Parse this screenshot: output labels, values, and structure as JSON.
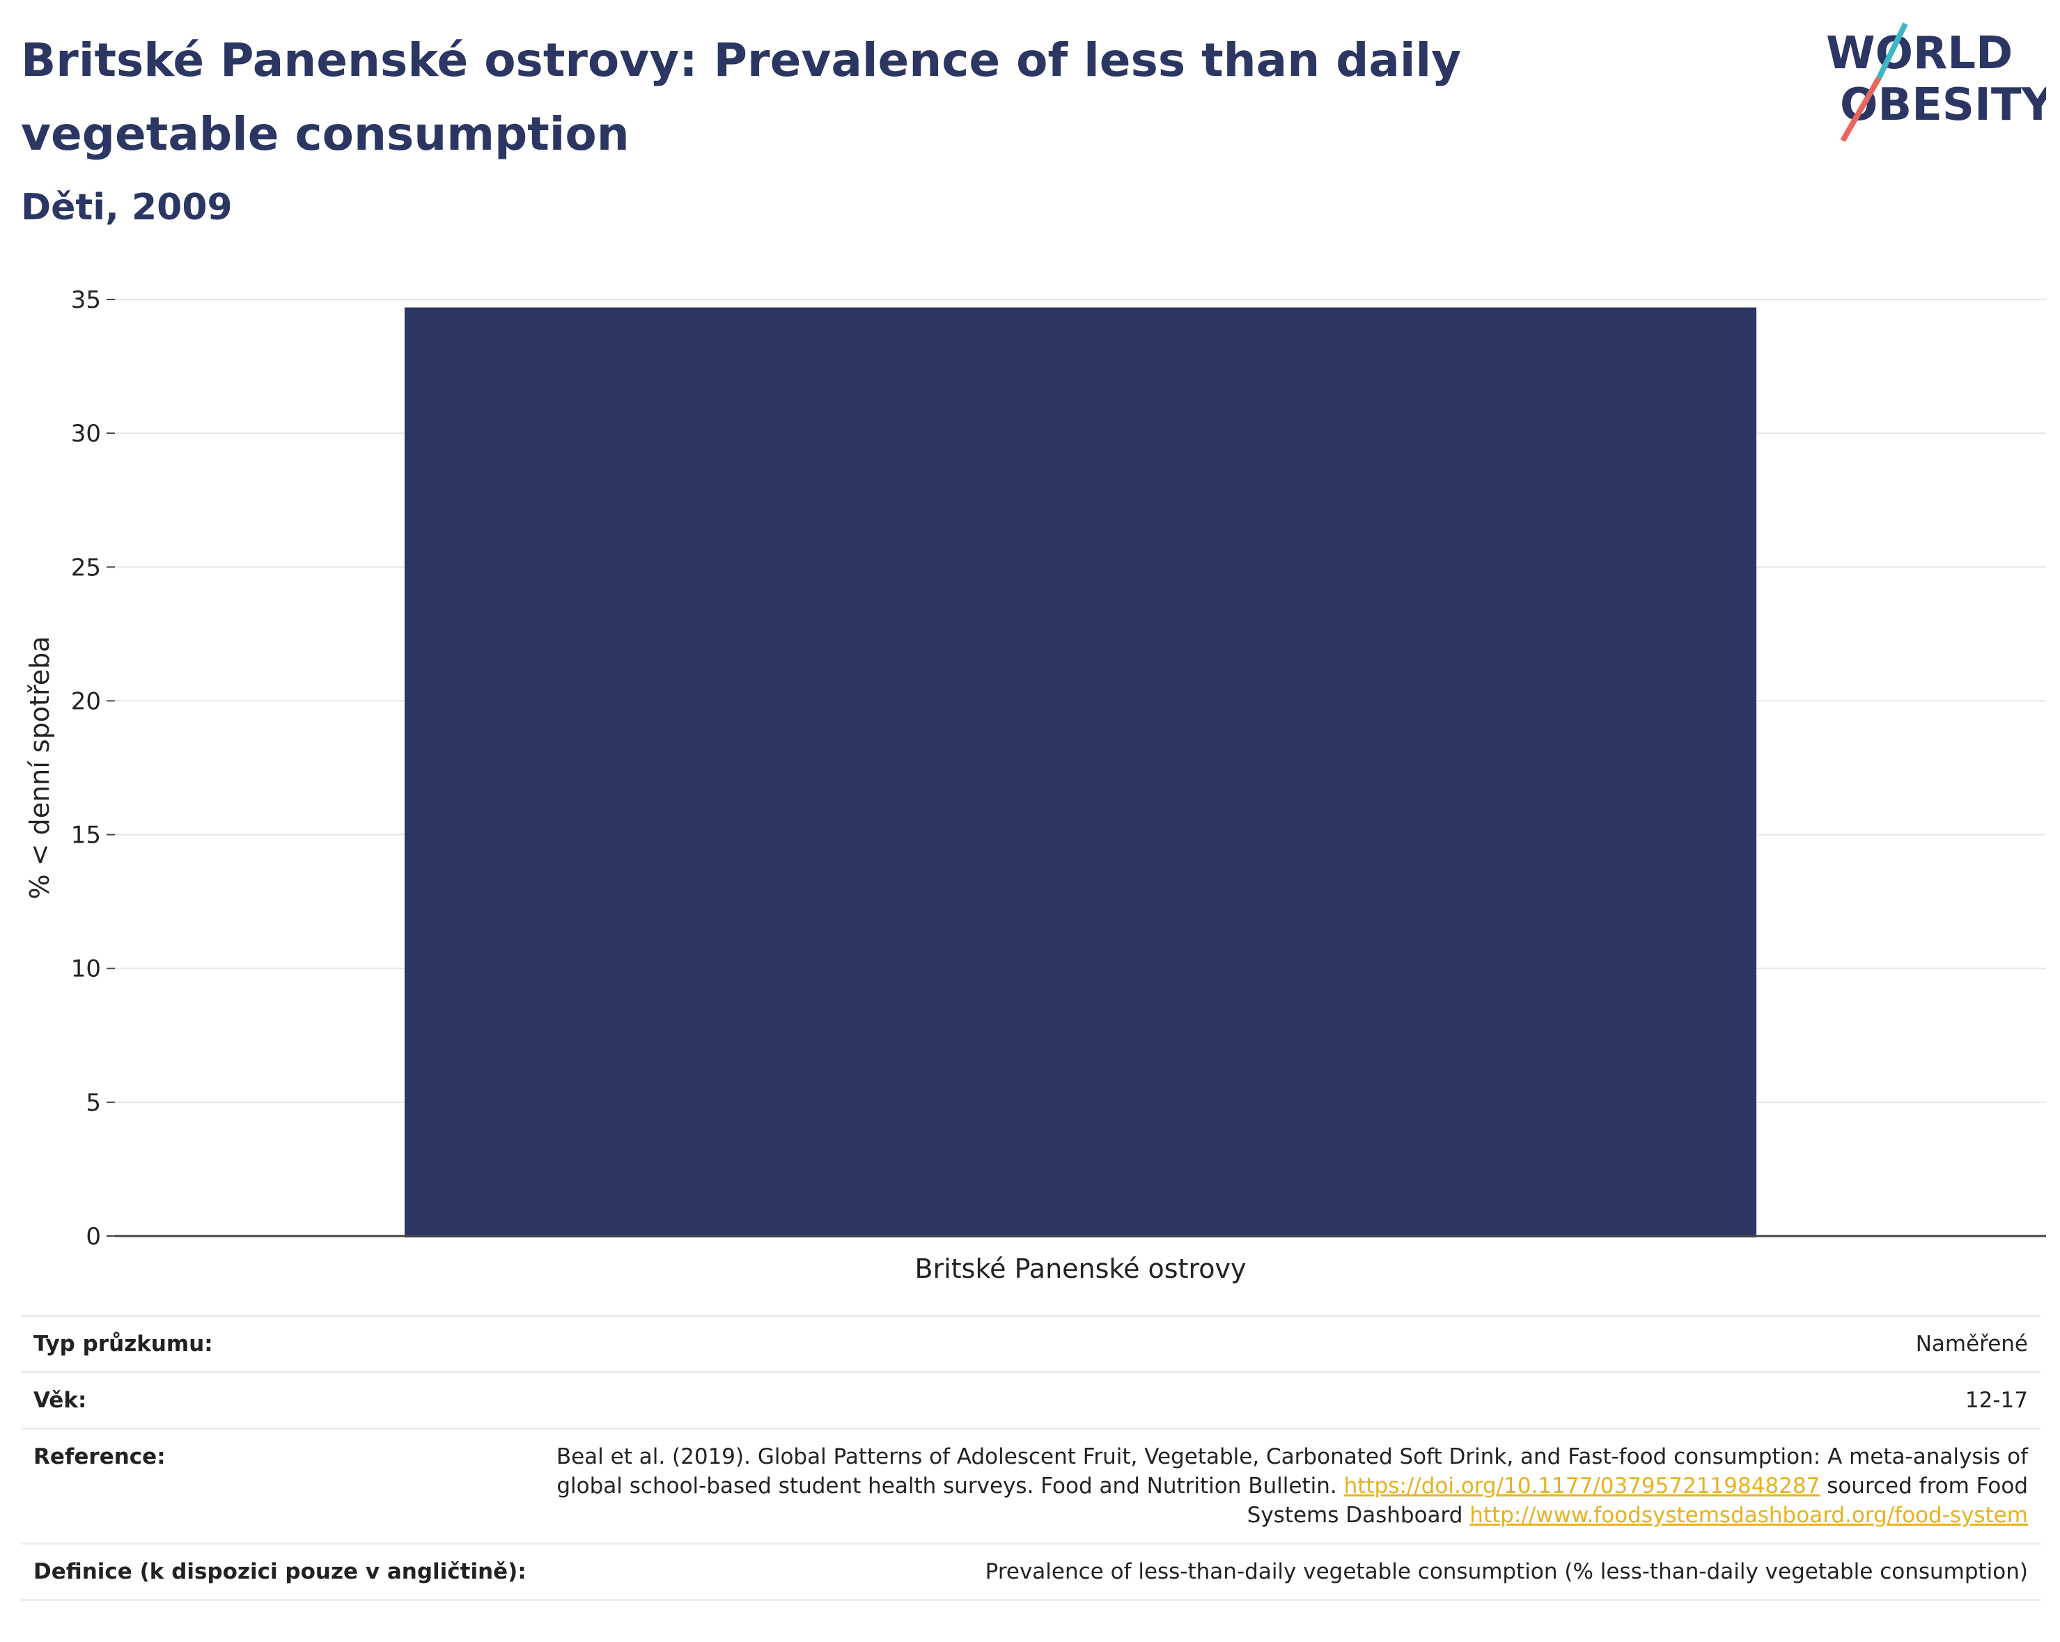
{
  "header": {
    "title": "Britské Panenské ostrovy: Prevalence of less than daily vegetable consumption",
    "subtitle": "Děti, 2009",
    "logo_line1": "WORLD",
    "logo_line2": "OBESITY"
  },
  "chart_data": {
    "type": "bar",
    "categories": [
      "Britské Panenské ostrovy"
    ],
    "values": [
      34.7
    ],
    "ylabel": "% < denní spotřeba",
    "xlabel": "",
    "ylim": [
      0,
      35
    ],
    "yticks": [
      0,
      5,
      10,
      15,
      20,
      25,
      30,
      35
    ],
    "grid": true,
    "bar_color": "#2b3663"
  },
  "info": {
    "survey_type_label": "Typ průzkumu:",
    "survey_type_value": "Naměřené",
    "age_label": "Věk:",
    "age_value": "12-17",
    "reference_label": "Reference:",
    "reference_text1": "Beal et al. (2019). Global Patterns of Adolescent Fruit, Vegetable, Carbonated Soft Drink, and Fast-food consumption: A meta-analysis of global school-based student health surveys. Food and Nutrition Bulletin.",
    "reference_link1": "https://doi.org/10.1177/0379572119848287",
    "reference_text2": "sourced from Food Systems Dashboard",
    "reference_link2": "http://www.foodsystemsdashboard.org/food-system",
    "definition_label": "Definice (k dispozici pouze v angličtině):",
    "definition_value": "Prevalence of less-than-daily vegetable consumption (% less-than-daily vegetable consumption)"
  },
  "colors": {
    "title": "#2b3663",
    "bar": "#2b3663",
    "link": "#e8b21e",
    "logo_teal": "#3bb8c3",
    "logo_coral": "#e8675a"
  }
}
